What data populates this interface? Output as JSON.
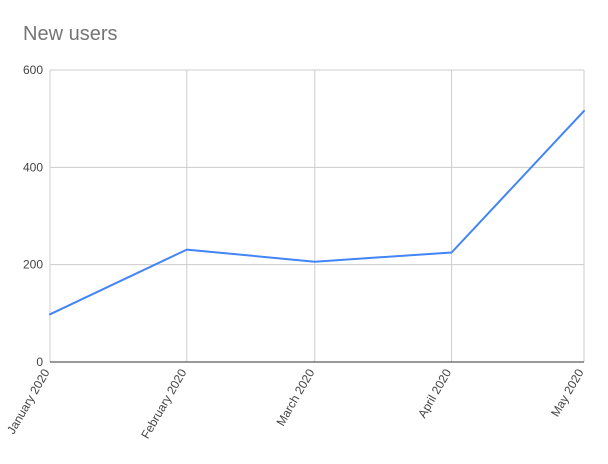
{
  "chart_data": {
    "type": "line",
    "title": "New users",
    "xlabel": "",
    "ylabel": "",
    "categories": [
      "January 2020",
      "February 2020",
      "March 2020",
      "April 2020",
      "May 2020"
    ],
    "x_positions": [
      "2020-01-01",
      "2020-02-01",
      "2020-03-01",
      "2020-04-01",
      "2020-05-01"
    ],
    "series": [
      {
        "values": [
          98,
          231,
          206,
          225,
          516
        ]
      }
    ],
    "ylim": [
      0,
      600
    ],
    "yticks": [
      0,
      200,
      400,
      600
    ],
    "ytick_labels": [
      "0",
      "200",
      "400",
      "600"
    ],
    "grid": true,
    "legend": "none",
    "colors": {
      "line": "#4285f4",
      "grid": "#cccccc",
      "axis": "#333333"
    }
  }
}
